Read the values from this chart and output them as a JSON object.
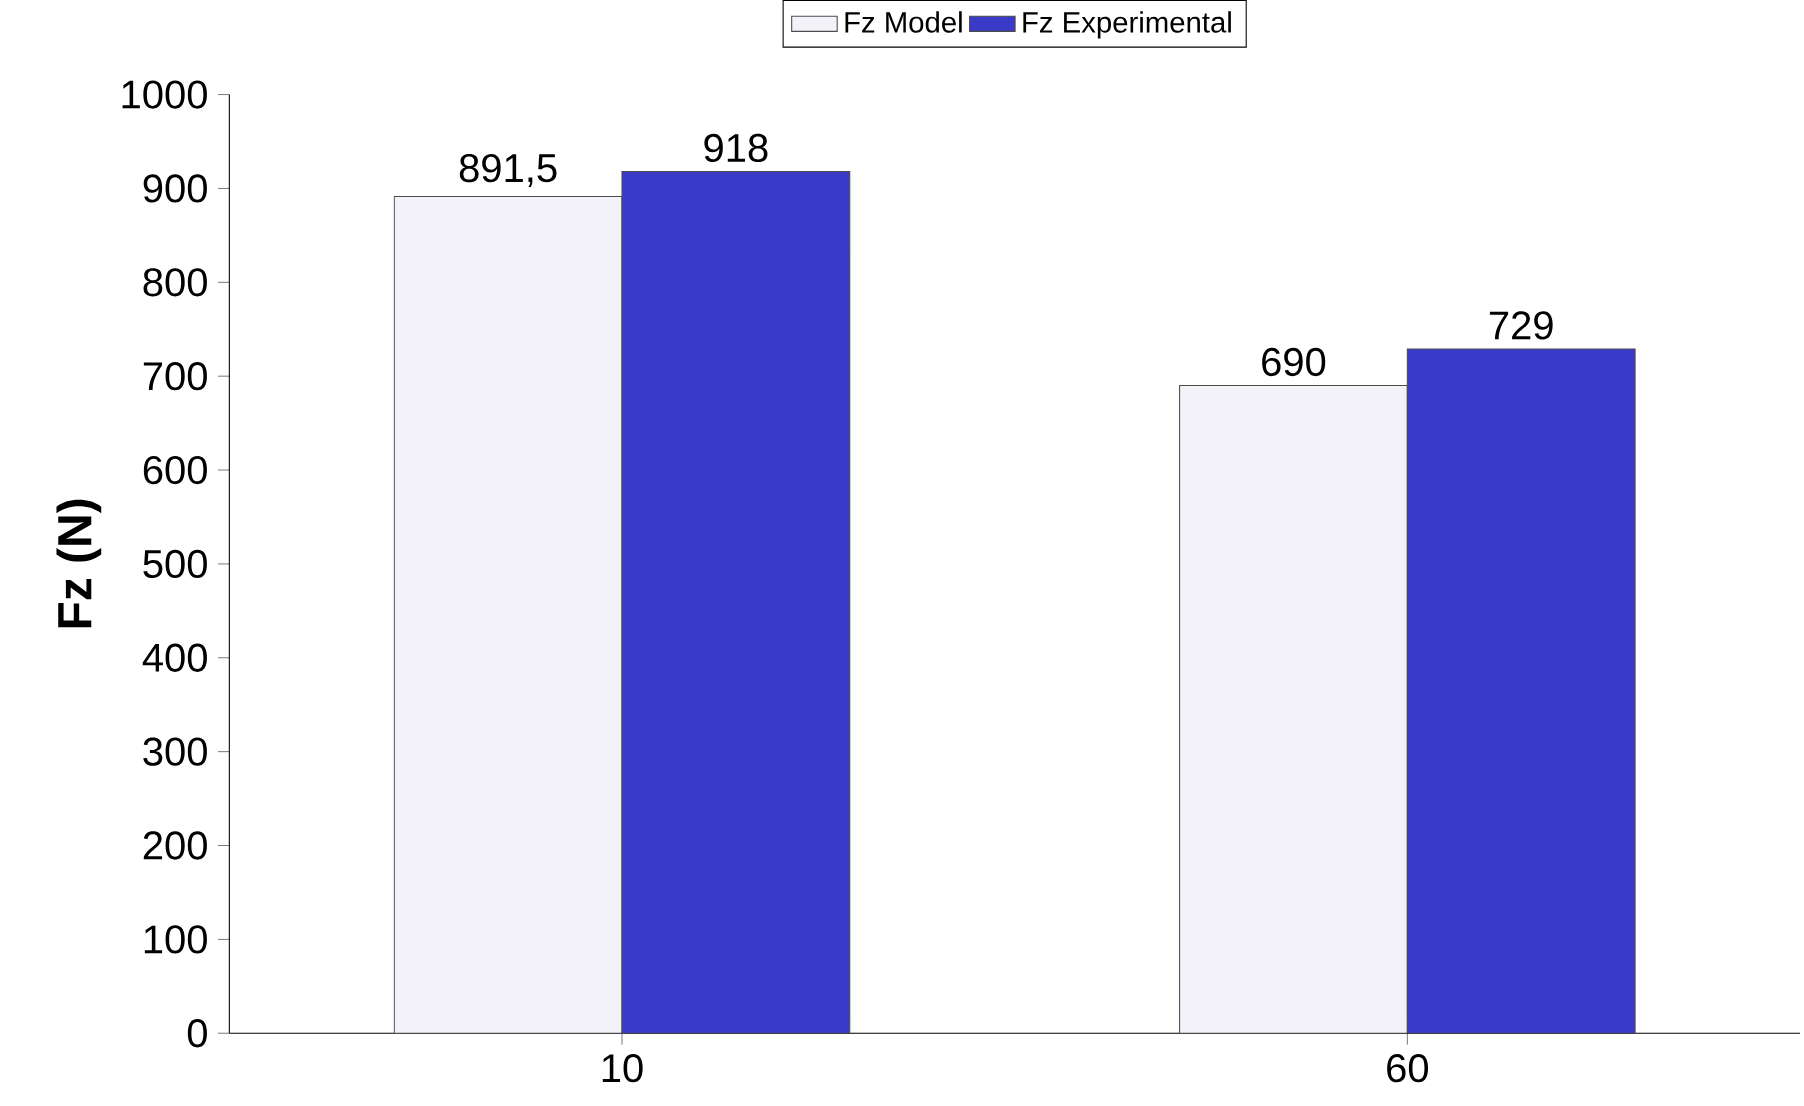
{
  "chart_data": {
    "type": "bar",
    "ylabel": "Fz (N)",
    "categories": [
      "10",
      "60"
    ],
    "series": [
      {
        "name": "Fz Model",
        "color": "#f2f2f8",
        "values": [
          891.5,
          690
        ],
        "value_labels": [
          "891,5",
          "690"
        ]
      },
      {
        "name": "Fz Experimental",
        "color": "#3a3ac8",
        "values": [
          918,
          729
        ],
        "value_labels": [
          "918",
          "729"
        ]
      }
    ],
    "ylim": [
      0,
      1000
    ],
    "yticks": [
      0,
      100,
      200,
      300,
      400,
      500,
      600,
      700,
      800,
      900,
      1000
    ],
    "grid": false,
    "legend": "top"
  }
}
